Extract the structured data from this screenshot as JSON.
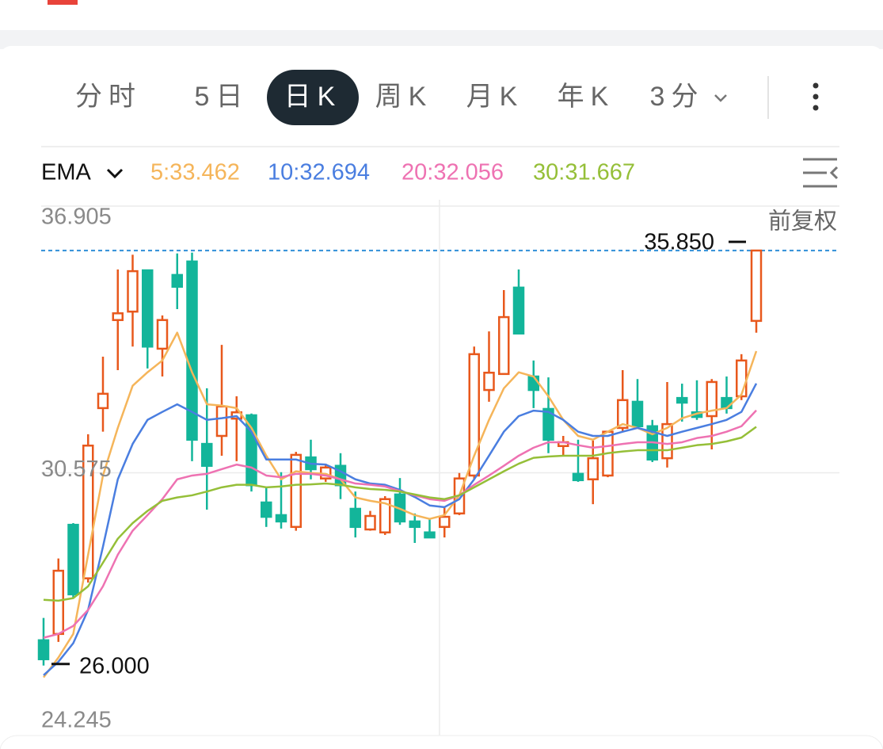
{
  "tabs": [
    "分时",
    "5日",
    "日K",
    "周K",
    "月K",
    "年K",
    "3分"
  ],
  "selected_tab": 2,
  "chart_data": {
    "type": "candlestick",
    "indicator": "EMA",
    "adjustment": "前复权",
    "up_color": "#e8581c",
    "down_color": "#13b59a",
    "open": [
      26.6,
      26.75,
      29.34,
      28.07,
      32.11,
      34.2,
      34.4,
      35.38,
      33.52,
      35.27,
      35.59,
      31.26,
      31.45,
      31.86,
      31.94,
      29.87,
      29.57,
      29.29,
      30.94,
      30.44,
      30.74,
      29.72,
      29.23,
      29.16,
      30.06,
      29.42,
      29.16,
      29.29,
      29.61,
      30.51,
      32.54,
      32.92,
      34.97,
      32.86,
      32.09,
      31.21,
      30.55,
      30.42,
      30.51,
      31.64,
      32.26,
      31.68,
      30.92,
      32.35,
      32.01,
      31.92,
      32.35,
      32.39,
      34.18
    ],
    "high": [
      27.13,
      28.54,
      29.38,
      31.49,
      33.33,
      35.4,
      35.75,
      35.38,
      34.31,
      35.78,
      35.8,
      32.58,
      33.61,
      32.39,
      31.98,
      30.23,
      30.59,
      31.07,
      31.36,
      30.79,
      31.04,
      30.13,
      29.67,
      30.02,
      30.45,
      29.61,
      29.48,
      29.76,
      30.57,
      33.57,
      33.93,
      34.91,
      35.4,
      33.24,
      32.84,
      31.45,
      31.36,
      31.34,
      31.55,
      33.01,
      32.8,
      31.83,
      32.73,
      32.69,
      32.77,
      32.8,
      32.86,
      33.39,
      35.85
    ],
    "low": [
      26.0,
      26.56,
      27.6,
      27.97,
      31.55,
      33.01,
      33.57,
      33.05,
      32.86,
      34.46,
      30.85,
      29.7,
      30.98,
      30.85,
      30.13,
      29.29,
      29.25,
      29.2,
      30.42,
      30.36,
      29.95,
      29.04,
      29.2,
      29.1,
      29.34,
      28.91,
      29.04,
      29.04,
      29.57,
      30.42,
      32.26,
      32.92,
      33.88,
      32.11,
      31.04,
      30.98,
      30.36,
      29.83,
      30.47,
      31.55,
      31.64,
      30.83,
      30.7,
      31.79,
      31.83,
      31.13,
      31.98,
      32.3,
      33.9
    ],
    "close": [
      26.15,
      28.25,
      27.69,
      31.22,
      32.45,
      34.36,
      35.36,
      33.57,
      34.2,
      34.99,
      31.36,
      30.74,
      32.15,
      32.01,
      30.28,
      29.53,
      29.42,
      31.0,
      30.66,
      30.7,
      30.28,
      29.29,
      29.55,
      29.95,
      29.42,
      29.29,
      29.04,
      29.53,
      30.44,
      33.39,
      32.95,
      34.27,
      33.88,
      32.54,
      31.36,
      31.3,
      30.4,
      30.92,
      31.55,
      32.3,
      31.68,
      30.89,
      31.73,
      32.24,
      31.9,
      32.73,
      32.11,
      33.24,
      35.85
    ],
    "series": [
      {
        "name": "5:33.462",
        "color": "#f5b55a",
        "values": [
          25.72,
          26.19,
          26.75,
          28.63,
          30.51,
          31.64,
          32.64,
          32.96,
          33.24,
          33.9,
          32.96,
          32.2,
          32.17,
          32.11,
          31.64,
          30.98,
          30.42,
          30.61,
          30.57,
          30.55,
          30.42,
          29.99,
          29.91,
          29.85,
          29.72,
          29.57,
          29.48,
          29.57,
          30.04,
          30.98,
          31.83,
          32.58,
          32.96,
          32.86,
          32.39,
          31.83,
          31.45,
          31.36,
          31.55,
          31.73,
          31.64,
          31.49,
          31.64,
          31.87,
          31.98,
          32.05,
          32.11,
          32.43,
          33.462
        ]
      },
      {
        "name": "10:32.694",
        "color": "#4a7ee0",
        "values": [
          25.77,
          26.09,
          26.53,
          27.32,
          28.82,
          30.42,
          31.26,
          31.83,
          32.02,
          32.2,
          32.02,
          31.83,
          31.87,
          31.92,
          31.55,
          30.89,
          30.89,
          30.89,
          30.79,
          30.77,
          30.61,
          30.42,
          30.32,
          30.29,
          30.17,
          30.0,
          29.8,
          29.76,
          29.95,
          30.42,
          30.98,
          31.55,
          31.92,
          32.05,
          32.02,
          31.83,
          31.55,
          31.45,
          31.45,
          31.55,
          31.64,
          31.55,
          31.45,
          31.55,
          31.64,
          31.73,
          31.83,
          32.02,
          32.694
        ]
      },
      {
        "name": "20:32.056",
        "color": "#ee72b2",
        "values": [
          26.66,
          26.75,
          26.94,
          27.32,
          27.88,
          28.63,
          29.2,
          29.57,
          29.95,
          30.42,
          30.51,
          30.55,
          30.66,
          30.77,
          30.7,
          30.51,
          30.47,
          30.55,
          30.55,
          30.51,
          30.42,
          30.32,
          30.29,
          30.25,
          30.14,
          30.04,
          29.95,
          29.91,
          30.04,
          30.29,
          30.51,
          30.74,
          30.98,
          31.17,
          31.3,
          31.3,
          31.23,
          31.17,
          31.21,
          31.26,
          31.3,
          31.3,
          31.26,
          31.3,
          31.4,
          31.45,
          31.55,
          31.68,
          32.056
        ]
      },
      {
        "name": "30:31.667",
        "color": "#95bf38",
        "values": [
          27.56,
          27.54,
          27.6,
          27.88,
          28.44,
          29.01,
          29.38,
          29.67,
          29.91,
          29.99,
          30.04,
          30.13,
          30.23,
          30.29,
          30.29,
          30.23,
          30.25,
          30.29,
          30.3,
          30.32,
          30.29,
          30.23,
          30.19,
          30.17,
          30.13,
          30.06,
          29.99,
          29.95,
          30.04,
          30.23,
          30.42,
          30.61,
          30.79,
          30.93,
          30.96,
          30.98,
          30.98,
          30.98,
          31.04,
          31.08,
          31.11,
          31.11,
          31.11,
          31.17,
          31.23,
          31.26,
          31.32,
          31.41,
          31.667
        ]
      }
    ],
    "ylim": [
      24.245,
      36.905
    ],
    "yticks": [
      24.245,
      30.575,
      36.905
    ],
    "grid": true,
    "high_marker": {
      "value": 35.85,
      "label": "35.850"
    },
    "low_marker": {
      "value": 26,
      "label": "26.000"
    }
  }
}
